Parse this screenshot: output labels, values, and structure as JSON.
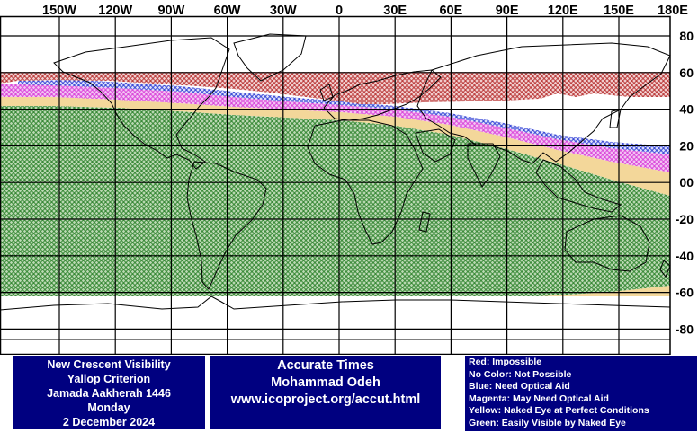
{
  "map": {
    "top_labels": [
      "150W",
      "120W",
      "90W",
      "60W",
      "30W",
      "0",
      "30E",
      "60E",
      "90E",
      "120E",
      "150E",
      "180E"
    ],
    "right_labels": [
      "80",
      "60",
      "40",
      "20",
      "00",
      "-20",
      "-40",
      "-60",
      "-80"
    ],
    "colors": {
      "red": "#b22222",
      "blue": "#1e2fd0",
      "magenta": "#d633d6",
      "yellow": "#f3d79a",
      "green": "#1f7a1f",
      "green_fill": "#bcd9b4",
      "land": "#000000",
      "grid": "#000000"
    }
  },
  "info_left": {
    "line1": "New Crescent Visibility",
    "line2": "Yallop Criterion",
    "line3": "Jamada Aakherah 1446",
    "line4": "Monday",
    "line5": "2 December 2024"
  },
  "info_mid": {
    "line1": "Accurate Times",
    "line2": "Mohammad Odeh",
    "line3": "www.icoproject.org/accut.html"
  },
  "legend": {
    "red": "Red: Impossible",
    "none": "No Color: Not Possible",
    "blue": "Blue: Need Optical Aid",
    "magenta": "Magenta: May Need Optical Aid",
    "yellow": "Yellow: Naked Eye at Perfect Conditions",
    "green": "Green: Easily Visible by Naked Eye"
  }
}
